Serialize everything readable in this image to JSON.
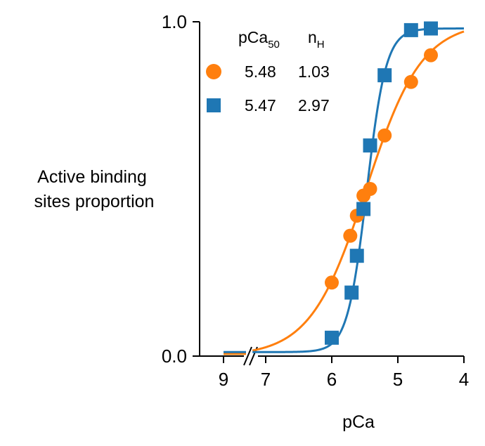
{
  "chart_data": {
    "type": "scatter",
    "title": "",
    "xlabel": "pCa",
    "ylabel": "Active binding sites proportion",
    "ylabel_lines": [
      "Active binding",
      "sites proportion"
    ],
    "xlim_reversed": [
      9,
      4
    ],
    "x_axis_break": "between 9 and 7",
    "ylim": [
      0.0,
      1.0
    ],
    "x_ticks": [
      9,
      7,
      6,
      5,
      4
    ],
    "x_tick_labels": [
      "9",
      "7",
      "6",
      "5",
      "4"
    ],
    "y_ticks": [
      0.0,
      1.0
    ],
    "y_tick_labels": [
      "0.0",
      "1.0"
    ],
    "grid": false,
    "legend_position": "top-left",
    "legend_header": {
      "col1": "pCa",
      "col1_sub": "50",
      "col2": "n",
      "col2_sub": "H"
    },
    "series": [
      {
        "marker": "circle",
        "color": "#ff7f0e",
        "pCa50": "5.48",
        "nH": "1.03",
        "points": [
          {
            "x": 6.0,
            "y": 0.22
          },
          {
            "x": 5.72,
            "y": 0.36
          },
          {
            "x": 5.62,
            "y": 0.42
          },
          {
            "x": 5.52,
            "y": 0.48
          },
          {
            "x": 5.42,
            "y": 0.5
          },
          {
            "x": 5.2,
            "y": 0.66
          },
          {
            "x": 4.8,
            "y": 0.82
          },
          {
            "x": 4.5,
            "y": 0.9
          }
        ],
        "fit": {
          "pCa50": 5.48,
          "nH": 1.03
        }
      },
      {
        "marker": "square",
        "color": "#1f77b4",
        "pCa50": "5.47",
        "nH": "2.97",
        "points": [
          {
            "x": 6.0,
            "y": 0.055
          },
          {
            "x": 5.7,
            "y": 0.19
          },
          {
            "x": 5.62,
            "y": 0.3
          },
          {
            "x": 5.52,
            "y": 0.44
          },
          {
            "x": 5.42,
            "y": 0.63
          },
          {
            "x": 5.2,
            "y": 0.84
          },
          {
            "x": 4.8,
            "y": 0.975
          },
          {
            "x": 4.5,
            "y": 0.98
          }
        ],
        "fit": {
          "pCa50": 5.47,
          "nH": 2.97,
          "baseline": 0.012,
          "top": 0.98
        }
      }
    ]
  }
}
